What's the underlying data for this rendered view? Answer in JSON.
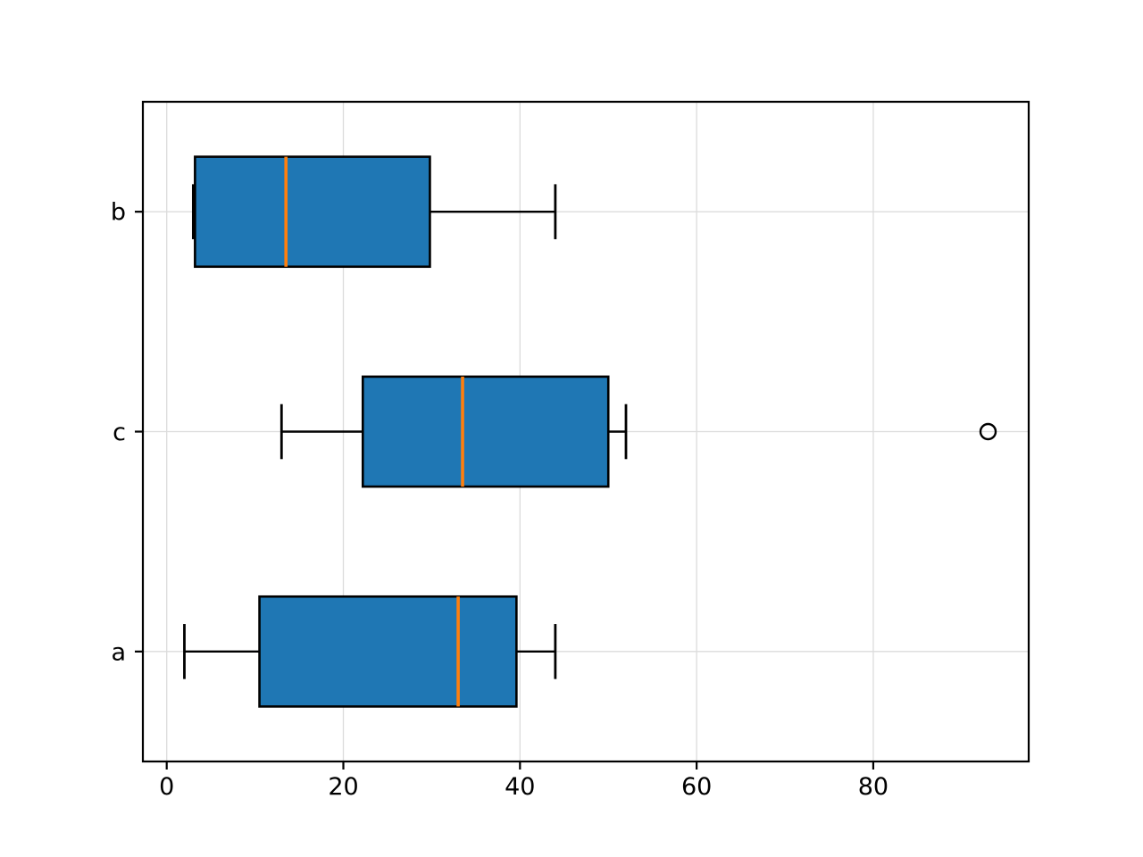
{
  "figure": {
    "background": "#ffffff",
    "title": ""
  },
  "chart_data": {
    "type": "boxplot",
    "orientation": "horizontal",
    "title": "",
    "xlabel": "",
    "ylabel": "",
    "categories_top_to_bottom": [
      "b",
      "c",
      "a"
    ],
    "series": [
      {
        "label": "b",
        "position": 3,
        "whisker_low": 3,
        "q1": 3.2,
        "median": 13.5,
        "q3": 29.8,
        "whisker_high": 44,
        "outliers": []
      },
      {
        "label": "c",
        "position": 2,
        "whisker_low": 13,
        "q1": 22.2,
        "median": 33.5,
        "q3": 50,
        "whisker_high": 52,
        "outliers": [
          93
        ]
      },
      {
        "label": "a",
        "position": 1,
        "whisker_low": 2,
        "q1": 10.5,
        "median": 33,
        "q3": 39.6,
        "whisker_high": 44,
        "outliers": []
      }
    ],
    "xtick_labels": [
      "0",
      "20",
      "40",
      "60",
      "80"
    ],
    "xtick_values": [
      0,
      20,
      40,
      60,
      80
    ],
    "xlim": [
      -2.7,
      97.6
    ],
    "ylim": [
      0.5,
      3.5
    ],
    "box_width": 0.5,
    "cap_width": 0.25,
    "grid": true,
    "legend": null,
    "colors": {
      "box_fill": "#1f77b4",
      "box_edge": "#000000",
      "median": "#ff7f0e",
      "whisker": "#000000",
      "cap": "#000000",
      "outlier_edge": "#000000",
      "grid": "#dcdcdc",
      "spine": "#000000",
      "background": "#ffffff"
    }
  }
}
